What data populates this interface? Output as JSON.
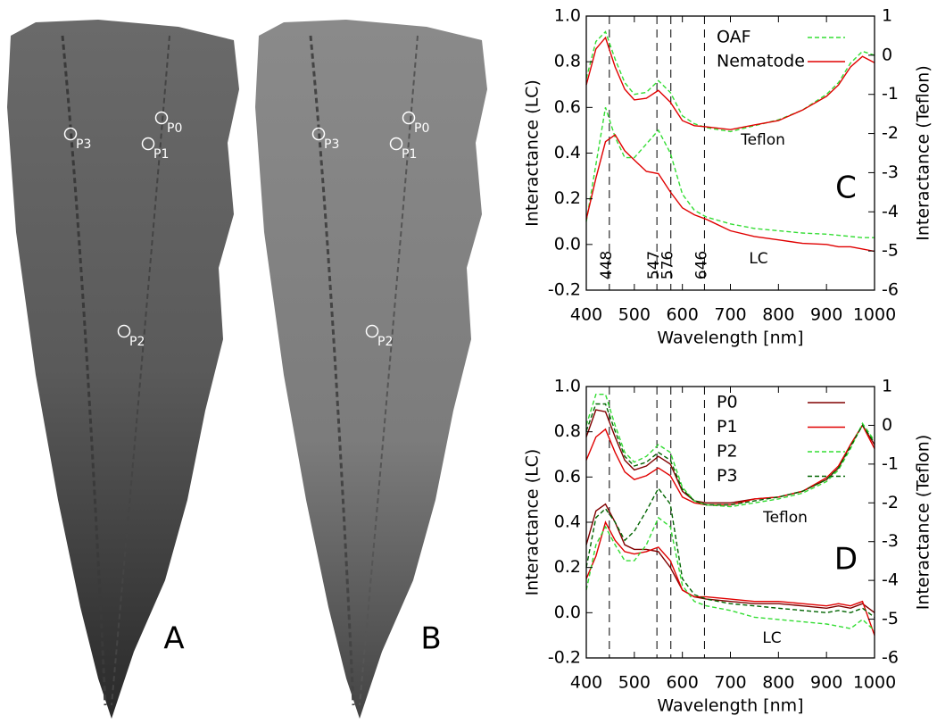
{
  "figure": {
    "images": [
      {
        "label": "A",
        "points": [
          "P0",
          "P1",
          "P2",
          "P3"
        ]
      },
      {
        "label": "B",
        "points": [
          "P0",
          "P1",
          "P2",
          "P3"
        ]
      }
    ]
  },
  "chart_data": [
    {
      "type": "line",
      "panel": "C",
      "xlabel": "Wavelength [nm]",
      "ylabel": "Interactance (LC)",
      "y2label": "Interactance (Teflon)",
      "annotations": [
        "Teflon",
        "LC"
      ],
      "x": [
        400,
        420,
        440,
        460,
        480,
        500,
        525,
        550,
        575,
        600,
        625,
        650,
        700,
        750,
        800,
        850,
        900,
        925,
        950,
        975,
        1000
      ],
      "xlim": [
        400,
        1000
      ],
      "xticks": [
        400,
        500,
        600,
        700,
        800,
        900,
        1000
      ],
      "ylim": [
        -0.2,
        1
      ],
      "yticks": [
        -0.2,
        {
          "value": 0,
          "label": "0.0"
        },
        0.2,
        0.4,
        0.6,
        0.8,
        {
          "value": 1,
          "label": "1.0"
        }
      ],
      "y2lim": [
        -6,
        1
      ],
      "y2ticks": [
        -6,
        -5,
        -4,
        -3,
        -2,
        -1,
        0,
        1
      ],
      "markers": [
        448,
        547,
        576,
        646
      ],
      "marker_labels": true,
      "legend": "upper right",
      "legend_text_colored": true,
      "series": [
        {
          "name": "OAF",
          "color": "#33dd33",
          "dash": true,
          "values": [
            0.1,
            0.35,
            0.6,
            0.47,
            0.38,
            0.38,
            0.44,
            0.5,
            0.4,
            0.22,
            0.15,
            0.12,
            0.09,
            0.07,
            0.06,
            0.05,
            0.045,
            0.04,
            0.035,
            0.03,
            0.03
          ],
          "values_y2": [
            -0.6,
            0.35,
            0.6,
            -0.1,
            -0.7,
            -1.0,
            -0.95,
            -0.65,
            -0.95,
            -1.55,
            -1.75,
            -1.85,
            -1.95,
            -1.8,
            -1.65,
            -1.4,
            -1.0,
            -0.7,
            -0.2,
            0.1,
            0.0
          ]
        },
        {
          "name": "Nematode",
          "color": "#e00000",
          "dash": false,
          "values": [
            0.11,
            0.29,
            0.45,
            0.48,
            0.41,
            0.37,
            0.32,
            0.31,
            0.23,
            0.16,
            0.13,
            0.11,
            0.06,
            0.035,
            0.02,
            0.005,
            0.0,
            -0.01,
            -0.01,
            -0.02,
            -0.03
          ],
          "values_y2": [
            -0.76,
            0.16,
            0.45,
            -0.3,
            -0.87,
            -1.14,
            -1.1,
            -0.9,
            -1.2,
            -1.67,
            -1.8,
            -1.83,
            -1.9,
            -1.78,
            -1.67,
            -1.4,
            -1.05,
            -0.76,
            -0.3,
            -0.03,
            -0.19
          ]
        }
      ]
    },
    {
      "type": "line",
      "panel": "D",
      "xlabel": "Wavelength [nm]",
      "ylabel": "Interactance (LC)",
      "y2label": "Interactance (Teflon)",
      "annotations": [
        "Teflon",
        "LC"
      ],
      "x": [
        400,
        420,
        440,
        460,
        480,
        500,
        525,
        550,
        575,
        600,
        625,
        650,
        700,
        750,
        800,
        850,
        900,
        925,
        950,
        975,
        1000
      ],
      "xlim": [
        400,
        1000
      ],
      "xticks": [
        400,
        500,
        600,
        700,
        800,
        900,
        1000
      ],
      "ylim": [
        -0.2,
        1
      ],
      "yticks": [
        -0.2,
        {
          "value": 0,
          "label": "0.0"
        },
        0.2,
        0.4,
        0.6,
        0.8,
        {
          "value": 1,
          "label": "1.0"
        }
      ],
      "y2lim": [
        -6,
        1
      ],
      "y2ticks": [
        -6,
        -5,
        -4,
        -3,
        -2,
        -1,
        0,
        1
      ],
      "markers": [
        448,
        547,
        576,
        646
      ],
      "marker_labels": false,
      "legend": "upper right",
      "legend_text_colored": false,
      "series": [
        {
          "name": "P0",
          "color": "#800000",
          "dash": false,
          "values": [
            0.3,
            0.45,
            0.48,
            0.4,
            0.3,
            0.28,
            0.28,
            0.27,
            0.2,
            0.1,
            0.07,
            0.06,
            0.05,
            0.04,
            0.04,
            0.03,
            0.02,
            0.03,
            0.02,
            0.04,
            0.0
          ],
          "values_y2": [
            -0.3,
            0.4,
            0.35,
            -0.3,
            -0.9,
            -1.15,
            -1.05,
            -0.8,
            -1.0,
            -1.7,
            -1.95,
            -2.0,
            -2.0,
            -1.9,
            -1.85,
            -1.7,
            -1.4,
            -1.1,
            -0.5,
            0.0,
            -0.5
          ]
        },
        {
          "name": "P1",
          "color": "#e00000",
          "dash": false,
          "values": [
            0.15,
            0.25,
            0.4,
            0.32,
            0.27,
            0.26,
            0.27,
            0.29,
            0.23,
            0.1,
            0.07,
            0.07,
            0.06,
            0.05,
            0.05,
            0.04,
            0.03,
            0.04,
            0.03,
            0.05,
            -0.1
          ],
          "values_y2": [
            -0.9,
            -0.3,
            -0.1,
            -0.7,
            -1.2,
            -1.4,
            -1.3,
            -1.1,
            -1.3,
            -1.85,
            -2.0,
            -2.05,
            -2.05,
            -1.9,
            -1.85,
            -1.7,
            -1.35,
            -1.05,
            -0.5,
            0.0,
            -0.6
          ]
        },
        {
          "name": "P2",
          "color": "#33dd33",
          "dash": true,
          "values": [
            0.1,
            0.3,
            0.38,
            0.3,
            0.23,
            0.23,
            0.3,
            0.42,
            0.38,
            0.12,
            0.05,
            0.03,
            0.01,
            -0.02,
            -0.03,
            -0.04,
            -0.05,
            -0.06,
            -0.07,
            -0.03,
            -0.08
          ],
          "values_y2": [
            0.0,
            0.8,
            0.8,
            0.0,
            -0.7,
            -0.95,
            -0.8,
            -0.5,
            -0.7,
            -1.6,
            -1.95,
            -2.05,
            -2.1,
            -2.0,
            -1.9,
            -1.75,
            -1.45,
            -1.15,
            -0.6,
            0.05,
            -0.4
          ]
        },
        {
          "name": "P3",
          "color": "#006400",
          "dash": true,
          "values": [
            0.2,
            0.42,
            0.46,
            0.4,
            0.32,
            0.36,
            0.45,
            0.55,
            0.48,
            0.15,
            0.08,
            0.06,
            0.04,
            0.03,
            0.02,
            0.01,
            0.0,
            0.01,
            0.0,
            0.02,
            -0.02
          ],
          "values_y2": [
            -0.15,
            0.55,
            0.55,
            -0.15,
            -0.8,
            -1.05,
            -0.95,
            -0.7,
            -0.9,
            -1.65,
            -1.95,
            -2.05,
            -2.05,
            -1.95,
            -1.85,
            -1.7,
            -1.4,
            -1.1,
            -0.55,
            0.0,
            -0.45
          ]
        }
      ]
    }
  ]
}
